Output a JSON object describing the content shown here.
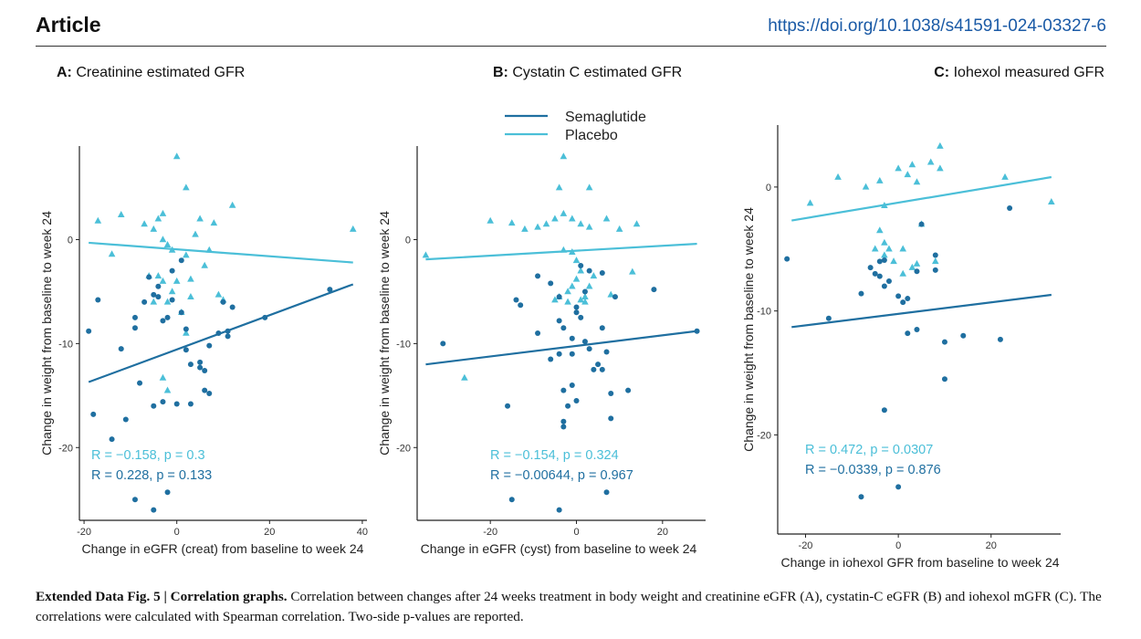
{
  "header": {
    "title": "Article",
    "doi": "https://doi.org/10.1038/s41591-024-03327-6"
  },
  "legend": {
    "items": [
      {
        "name": "Semaglutide",
        "color": "#1f6fa0"
      },
      {
        "name": "Placebo",
        "color": "#4bbfd8"
      }
    ]
  },
  "colors": {
    "semaglutide": "#1f6fa0",
    "placebo": "#4bbfd8",
    "axis": "#222222"
  },
  "caption": {
    "label": "Extended Data Fig. 5 | Correlation graphs.",
    "text": "Correlation between changes after 24 weeks treatment in body weight and creatinine eGFR (A), cystatin-C eGFR (B) and iohexol mGFR (C). The correlations were calculated with Spearman correlation. Two-side p-values are reported."
  },
  "chart_data": [
    {
      "type": "scatter",
      "panel_letter": "A:",
      "panel_name": "Creatinine estimated GFR",
      "xlabel": "Change in eGFR (creat) from baseline to week 24",
      "ylabel": "Change in weight from baseline to week 24",
      "xlim": [
        -21,
        41
      ],
      "ylim": [
        -27,
        9
      ],
      "xticks": [
        -20,
        0,
        20,
        40
      ],
      "yticks": [
        0,
        -10,
        -20
      ],
      "stats": [
        {
          "text": "R = −0.158, p = 0.3",
          "series": "Placebo"
        },
        {
          "text": "R = 0.228, p = 0.133",
          "series": "Semaglutide"
        }
      ],
      "series": [
        {
          "name": "Placebo",
          "marker": "triangle",
          "line": {
            "x": [
              -19,
              38
            ],
            "y": [
              -0.3,
              -2.2
            ]
          },
          "points": [
            [
              0,
              8
            ],
            [
              -17,
              1.8
            ],
            [
              -12,
              2.4
            ],
            [
              -7,
              1.5
            ],
            [
              -5,
              1
            ],
            [
              -4,
              2
            ],
            [
              -3,
              2.5
            ],
            [
              -3,
              0
            ],
            [
              -2,
              -0.5
            ],
            [
              2,
              5
            ],
            [
              4,
              0.5
            ],
            [
              5,
              2
            ],
            [
              8,
              1.6
            ],
            [
              12,
              3.3
            ],
            [
              38,
              1
            ],
            [
              -14,
              -1.4
            ],
            [
              -6,
              -3.5
            ],
            [
              -4,
              -3.5
            ],
            [
              -3,
              -4
            ],
            [
              -1,
              -1
            ],
            [
              2,
              -1.5
            ],
            [
              3,
              -3.8
            ],
            [
              6,
              -2.5
            ],
            [
              7,
              -1
            ],
            [
              9,
              -5.3
            ],
            [
              10,
              -5.8
            ],
            [
              -2,
              -6
            ],
            [
              0,
              -4
            ],
            [
              1,
              -7
            ],
            [
              2,
              -9
            ],
            [
              -3,
              -13.3
            ],
            [
              -2,
              -14.5
            ],
            [
              -5,
              -6
            ],
            [
              3,
              -5.5
            ],
            [
              -1,
              -5
            ]
          ]
        },
        {
          "name": "Semaglutide",
          "marker": "circle",
          "line": {
            "x": [
              -19,
              38
            ],
            "y": [
              -13.7,
              -4.3
            ]
          },
          "points": [
            [
              -17,
              -5.8
            ],
            [
              -19,
              -8.8
            ],
            [
              -18,
              -16.8
            ],
            [
              -12,
              -10.5
            ],
            [
              -11,
              -17.3
            ],
            [
              -9,
              -7.5
            ],
            [
              -9,
              -8.5
            ],
            [
              -7,
              -6
            ],
            [
              -6,
              -3.6
            ],
            [
              -5,
              -5.3
            ],
            [
              -4,
              -4.5
            ],
            [
              -4,
              -5.5
            ],
            [
              -3,
              -7.8
            ],
            [
              -2,
              -7.5
            ],
            [
              -1,
              -5.8
            ],
            [
              -1,
              -3
            ],
            [
              1,
              -7
            ],
            [
              2,
              -8.6
            ],
            [
              2,
              -10.6
            ],
            [
              3,
              -15.8
            ],
            [
              3,
              -12
            ],
            [
              5,
              -12.3
            ],
            [
              5,
              -11.8
            ],
            [
              6,
              -12.6
            ],
            [
              6,
              -14.5
            ],
            [
              7,
              -14.8
            ],
            [
              7,
              -10.2
            ],
            [
              9,
              -9
            ],
            [
              10,
              -6
            ],
            [
              11,
              -8.8
            ],
            [
              11,
              -9.3
            ],
            [
              12,
              -6.5
            ],
            [
              19,
              -7.5
            ],
            [
              -8,
              -13.8
            ],
            [
              -5,
              -16
            ],
            [
              -3,
              -15.6
            ],
            [
              0,
              -15.8
            ],
            [
              1,
              -2
            ],
            [
              -14,
              -19.2
            ],
            [
              -9,
              -25
            ],
            [
              -5,
              -26
            ],
            [
              -2,
              -24.3
            ],
            [
              33,
              -4.8
            ]
          ]
        }
      ]
    },
    {
      "type": "scatter",
      "panel_letter": "B:",
      "panel_name": "Cystatin C estimated GFR",
      "xlabel": "Change in eGFR (cyst) from baseline to week 24",
      "ylabel": "Change in weight from baseline to week 24",
      "xlim": [
        -37,
        30
      ],
      "ylim": [
        -27,
        9
      ],
      "xticks": [
        -20,
        0,
        20
      ],
      "yticks": [
        0,
        -10,
        -20
      ],
      "stats": [
        {
          "text": "R = −0.154, p = 0.324",
          "series": "Placebo"
        },
        {
          "text": "R = −0.00644, p = 0.967",
          "series": "Semaglutide"
        }
      ],
      "series": [
        {
          "name": "Placebo",
          "marker": "triangle",
          "line": {
            "x": [
              -35,
              28
            ],
            "y": [
              -1.9,
              -0.4
            ]
          },
          "points": [
            [
              -3,
              8
            ],
            [
              -4,
              5
            ],
            [
              3,
              5
            ],
            [
              -20,
              1.8
            ],
            [
              -15,
              1.6
            ],
            [
              -12,
              1
            ],
            [
              -9,
              1.2
            ],
            [
              -7,
              1.5
            ],
            [
              -5,
              2
            ],
            [
              -3,
              2.5
            ],
            [
              -1,
              2
            ],
            [
              1,
              1.5
            ],
            [
              3,
              1.2
            ],
            [
              7,
              2
            ],
            [
              10,
              1
            ],
            [
              14,
              1.5
            ],
            [
              -35,
              -1.5
            ],
            [
              -3,
              -1
            ],
            [
              -1,
              -1.2
            ],
            [
              0,
              -2
            ],
            [
              1,
              -3
            ],
            [
              4,
              -3.5
            ],
            [
              13,
              -3.1
            ],
            [
              -4,
              -5.5
            ],
            [
              -2,
              -5
            ],
            [
              0,
              -3.8
            ],
            [
              1,
              -5.8
            ],
            [
              2,
              -6
            ],
            [
              3,
              -4.5
            ],
            [
              8,
              -5.3
            ],
            [
              -26,
              -13.3
            ],
            [
              -1,
              -4.5
            ],
            [
              -5,
              -5.8
            ],
            [
              2,
              -5.5
            ],
            [
              -2,
              -6
            ]
          ]
        },
        {
          "name": "Semaglutide",
          "marker": "circle",
          "line": {
            "x": [
              -35,
              28
            ],
            "y": [
              -12,
              -8.8
            ]
          },
          "points": [
            [
              -31,
              -10
            ],
            [
              -16,
              -16
            ],
            [
              -14,
              -5.8
            ],
            [
              -13,
              -6.3
            ],
            [
              -9,
              -3.5
            ],
            [
              -6,
              -4.2
            ],
            [
              -4,
              -5.5
            ],
            [
              -4,
              -7.8
            ],
            [
              -3,
              -8.5
            ],
            [
              -1,
              -9.5
            ],
            [
              0,
              -7
            ],
            [
              0,
              -6.5
            ],
            [
              1,
              -7.5
            ],
            [
              2,
              -5
            ],
            [
              2,
              -9.8
            ],
            [
              3,
              -10.5
            ],
            [
              3,
              -3
            ],
            [
              6,
              -3.2
            ],
            [
              6,
              -8.5
            ],
            [
              7,
              -10.8
            ],
            [
              8,
              -14.8
            ],
            [
              8,
              -17.2
            ],
            [
              9,
              -5.5
            ],
            [
              5,
              -12
            ],
            [
              4,
              -12.5
            ],
            [
              6,
              -12.5
            ],
            [
              12,
              -14.5
            ],
            [
              18,
              -4.8
            ],
            [
              28,
              -8.8
            ],
            [
              -4,
              -11
            ],
            [
              -3,
              -14.5
            ],
            [
              -1,
              -14
            ],
            [
              0,
              -15.5
            ],
            [
              -2,
              -16
            ],
            [
              -3,
              -18
            ],
            [
              -3,
              -17.5
            ],
            [
              -9,
              -9
            ],
            [
              -6,
              -11.5
            ],
            [
              -15,
              -25
            ],
            [
              -4,
              -26
            ],
            [
              7,
              -24.3
            ],
            [
              1,
              -2.5
            ],
            [
              -1,
              -11
            ]
          ]
        }
      ]
    },
    {
      "type": "scatter",
      "panel_letter": "C:",
      "panel_name": "Iohexol measured GFR",
      "xlabel": "Change in iohexol GFR from baseline to week 24",
      "ylabel": "Change in weight from baseline to week 24",
      "xlim": [
        -26,
        35
      ],
      "ylim": [
        -28,
        5
      ],
      "xticks": [
        -20,
        0,
        20
      ],
      "yticks": [
        0,
        -10,
        -20
      ],
      "stats": [
        {
          "text": "R = 0.472, p = 0.0307",
          "series": "Placebo"
        },
        {
          "text": "R = −0.0339, p = 0.876",
          "series": "Semaglutide"
        }
      ],
      "series": [
        {
          "name": "Placebo",
          "marker": "triangle",
          "line": {
            "x": [
              -23,
              33
            ],
            "y": [
              -2.7,
              0.8
            ]
          },
          "points": [
            [
              -19,
              -1.3
            ],
            [
              -13,
              0.8
            ],
            [
              -7,
              0
            ],
            [
              -4,
              0.5
            ],
            [
              0,
              1.5
            ],
            [
              2,
              1
            ],
            [
              3,
              1.8
            ],
            [
              4,
              0.4
            ],
            [
              7,
              2
            ],
            [
              9,
              1.5
            ],
            [
              9,
              3.3
            ],
            [
              23,
              0.8
            ],
            [
              33,
              -1.2
            ],
            [
              -3,
              -1.5
            ],
            [
              -4,
              -3.5
            ],
            [
              -3,
              -4.5
            ],
            [
              -2,
              -5
            ],
            [
              -1,
              -6
            ],
            [
              1,
              -5
            ],
            [
              1,
              -7
            ],
            [
              3,
              -6.5
            ],
            [
              4,
              -6.2
            ],
            [
              8,
              -6
            ],
            [
              5,
              -3
            ],
            [
              -3,
              -5.5
            ],
            [
              -5,
              -5
            ]
          ]
        },
        {
          "name": "Semaglutide",
          "marker": "circle",
          "line": {
            "x": [
              -23,
              33
            ],
            "y": [
              -11.3,
              -8.7
            ]
          },
          "points": [
            [
              -24,
              -5.8
            ],
            [
              -15,
              -10.6
            ],
            [
              -8,
              -8.6
            ],
            [
              -6,
              -6.5
            ],
            [
              -5,
              -7
            ],
            [
              -4,
              -7.2
            ],
            [
              -4,
              -6
            ],
            [
              -3,
              -5.9
            ],
            [
              -3,
              -8
            ],
            [
              0,
              -8.8
            ],
            [
              1,
              -9.3
            ],
            [
              2,
              -11.8
            ],
            [
              2,
              -9
            ],
            [
              4,
              -11.5
            ],
            [
              4,
              -6.8
            ],
            [
              5,
              -3
            ],
            [
              8,
              -5.5
            ],
            [
              8,
              -6.7
            ],
            [
              10,
              -12.5
            ],
            [
              10,
              -15.5
            ],
            [
              14,
              -12
            ],
            [
              22,
              -12.3
            ],
            [
              24,
              -1.7
            ],
            [
              -3,
              -18
            ],
            [
              -8,
              -25
            ],
            [
              0,
              -24.2
            ],
            [
              -2,
              -7.6
            ]
          ]
        }
      ]
    }
  ]
}
